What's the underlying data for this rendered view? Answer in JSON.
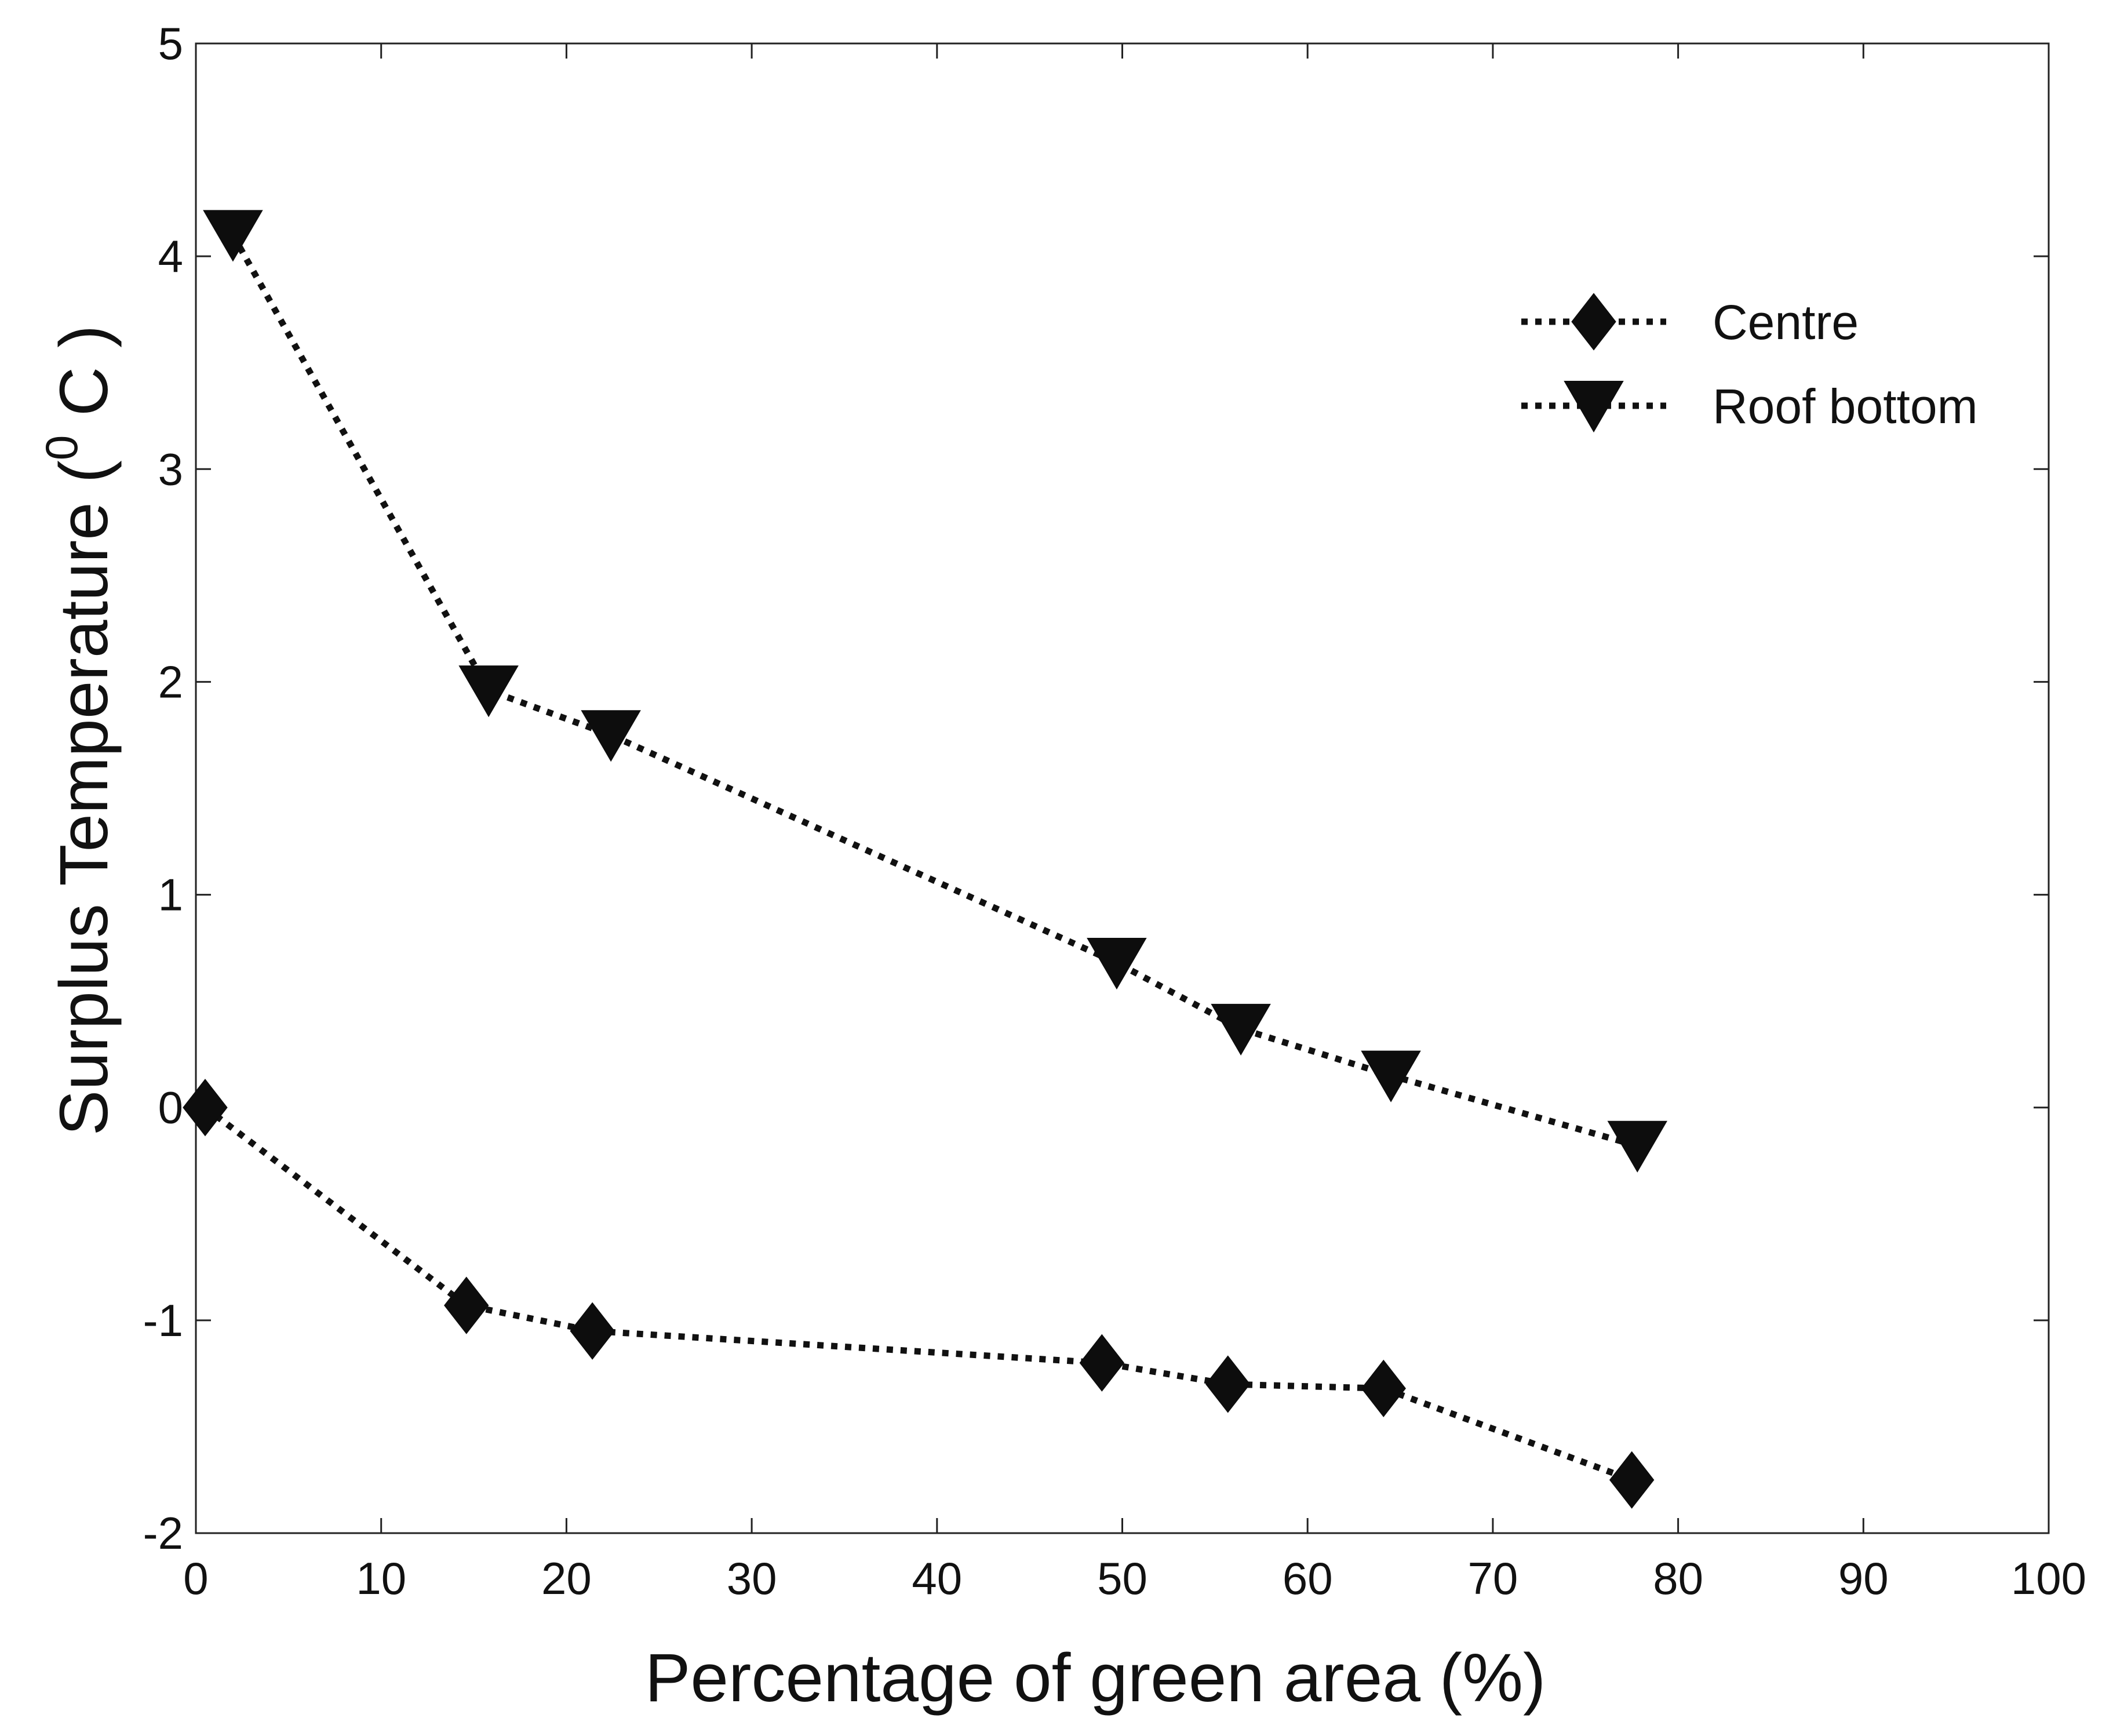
{
  "chart_data": {
    "type": "line",
    "title": "",
    "xlabel": "Percentage of green area (%)",
    "ylabel": "Surplus Temperature (",
    "ylabel_superscript": "0",
    "ylabel_tail": " C )",
    "xlim": [
      0,
      100
    ],
    "ylim": [
      -2,
      5
    ],
    "xticks": [
      0,
      10,
      20,
      30,
      40,
      50,
      60,
      70,
      80,
      90,
      100
    ],
    "yticks": [
      -2,
      -1,
      0,
      1,
      2,
      3,
      4,
      5
    ],
    "grid": false,
    "legend_position": "top-right",
    "series": [
      {
        "name": "Centre",
        "marker": "diamond",
        "line_style": "dotted",
        "x": [
          0.5,
          14.6,
          21.4,
          48.9,
          55.7,
          64.1,
          77.5
        ],
        "y": [
          0.0,
          -0.93,
          -1.05,
          -1.2,
          -1.3,
          -1.32,
          -1.75
        ]
      },
      {
        "name": "Roof bottom",
        "marker": "triangle-down",
        "line_style": "dotted",
        "x": [
          2.0,
          15.8,
          22.4,
          49.7,
          56.4,
          64.5,
          77.8
        ],
        "y": [
          4.1,
          1.96,
          1.75,
          0.68,
          0.37,
          0.15,
          -0.18
        ]
      }
    ]
  }
}
